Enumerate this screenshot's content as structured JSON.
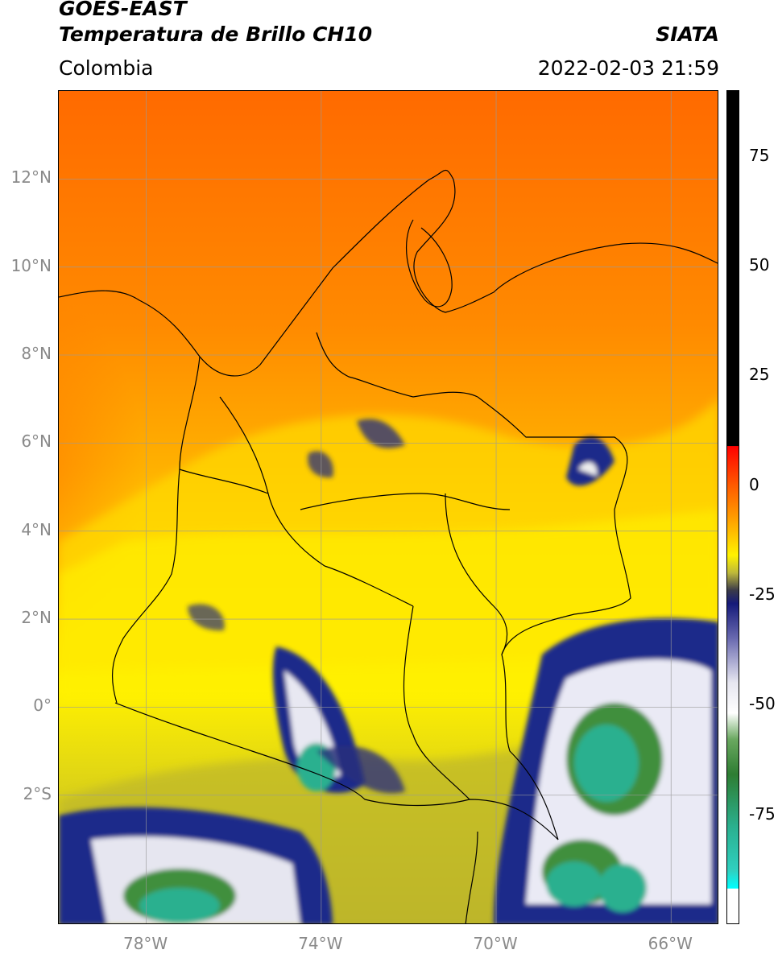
{
  "header": {
    "satellite": "GOES-EAST",
    "product": "Temperatura de Brillo CH10",
    "region": "Colombia",
    "agency": "SIATA",
    "timestamp": "2022-02-03 21:59"
  },
  "map": {
    "lon_range": [
      -80,
      -64.9
    ],
    "lat_range": [
      -4.95,
      14.0
    ],
    "lat_ticks": [
      {
        "value": 12,
        "label": "12°N"
      },
      {
        "value": 10,
        "label": "10°N"
      },
      {
        "value": 8,
        "label": "8°N"
      },
      {
        "value": 6,
        "label": "6°N"
      },
      {
        "value": 4,
        "label": "4°N"
      },
      {
        "value": 2,
        "label": "2°N"
      },
      {
        "value": 0,
        "label": "0°"
      },
      {
        "value": -2,
        "label": "2°S"
      }
    ],
    "lon_ticks": [
      {
        "value": -78,
        "label": "78°W"
      },
      {
        "value": -74,
        "label": "74°W"
      },
      {
        "value": -70,
        "label": "70°W"
      },
      {
        "value": -66,
        "label": "66°W"
      }
    ],
    "grid": true,
    "colors": {
      "warm_north": "#ff6a00",
      "mid": "#ffa200",
      "yellow": "#fff200",
      "olive": "#c9c21e",
      "blue": "#1a237e",
      "white": "#f2f2f2",
      "green": "#3a8a3a",
      "teal": "#2bb08f"
    }
  },
  "colorbar": {
    "range": [
      -100,
      90
    ],
    "ticks": [
      {
        "value": 75,
        "label": "75"
      },
      {
        "value": 50,
        "label": "50"
      },
      {
        "value": 25,
        "label": "25"
      },
      {
        "value": 0,
        "label": "0"
      },
      {
        "value": -25,
        "label": "-25"
      },
      {
        "value": -50,
        "label": "-50"
      },
      {
        "value": -75,
        "label": "-75"
      }
    ]
  }
}
